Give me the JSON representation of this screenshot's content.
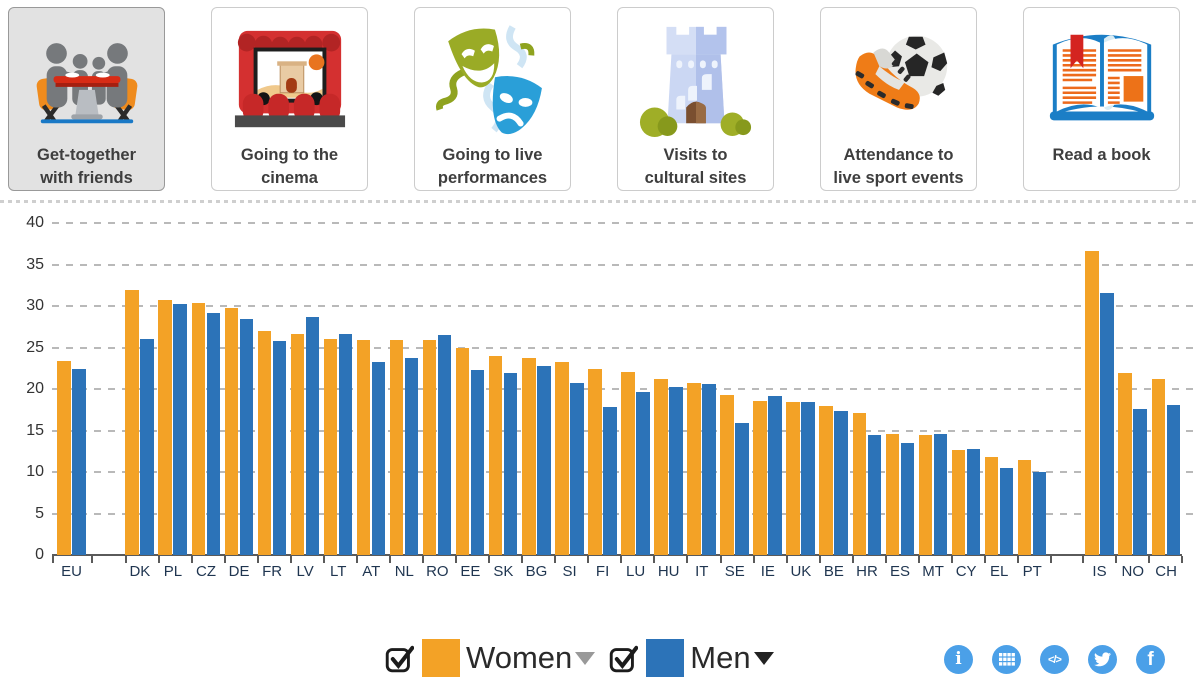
{
  "tabs": [
    {
      "line1": "Get-together",
      "line2": "with friends",
      "selected": true
    },
    {
      "line1": "Going to the",
      "line2": "cinema",
      "selected": false
    },
    {
      "line1": "Going to live",
      "line2": "performances",
      "selected": false
    },
    {
      "line1": "Visits to",
      "line2": "cultural sites",
      "selected": false
    },
    {
      "line1": "Attendance to",
      "line2": "live sport events",
      "selected": false
    },
    {
      "line1": "Read a book",
      "line2": "",
      "selected": false
    }
  ],
  "chart_data": {
    "type": "bar",
    "title": "",
    "categories": [
      "EU",
      "DK",
      "PL",
      "CZ",
      "DE",
      "FR",
      "LV",
      "LT",
      "AT",
      "NL",
      "RO",
      "EE",
      "SK",
      "BG",
      "SI",
      "FI",
      "LU",
      "HU",
      "IT",
      "SE",
      "IE",
      "UK",
      "BE",
      "HR",
      "ES",
      "MT",
      "CY",
      "EL",
      "PT",
      "IS",
      "NO",
      "CH"
    ],
    "series": [
      {
        "name": "Women",
        "color": "#F3A226",
        "values": [
          23.4,
          31.9,
          30.7,
          30.4,
          29.8,
          27.0,
          26.6,
          26.0,
          25.9,
          25.9,
          25.9,
          25.0,
          24.0,
          23.7,
          23.2,
          22.4,
          22.0,
          21.2,
          20.7,
          19.3,
          18.5,
          18.4,
          17.9,
          17.1,
          14.6,
          14.5,
          12.6,
          11.8,
          11.4,
          36.6,
          21.9,
          21.2
        ]
      },
      {
        "name": "Men",
        "color": "#2C73B8",
        "values": [
          22.4,
          26.0,
          30.2,
          29.1,
          28.4,
          25.8,
          28.7,
          26.6,
          23.3,
          23.7,
          26.5,
          22.3,
          21.9,
          22.8,
          20.7,
          17.8,
          19.6,
          20.3,
          20.6,
          15.9,
          19.1,
          18.4,
          17.3,
          14.4,
          13.5,
          14.6,
          12.8,
          10.5,
          10.0,
          31.6,
          17.6,
          18.1
        ]
      }
    ],
    "xlabel": "",
    "ylabel": "",
    "ylim": [
      0,
      40
    ],
    "yticks": [
      0,
      5,
      10,
      15,
      20,
      25,
      30,
      35,
      40
    ],
    "grid": "horizontal-dashed",
    "legend_position": "bottom",
    "group_gaps_after": [
      "EU",
      "PT"
    ]
  },
  "legend": {
    "women_label": "Women",
    "men_label": "Men",
    "women_checked": true,
    "men_checked": true
  },
  "toolbar": {
    "icon_color": "#4BA0E8",
    "icons": [
      "info",
      "data-table",
      "embed-code",
      "twitter",
      "facebook"
    ],
    "code_glyph": "</>",
    "info_glyph": "i",
    "facebook_glyph": "f"
  },
  "colors": {
    "women_bar": "#F3A226",
    "men_bar": "#2C73B8"
  }
}
